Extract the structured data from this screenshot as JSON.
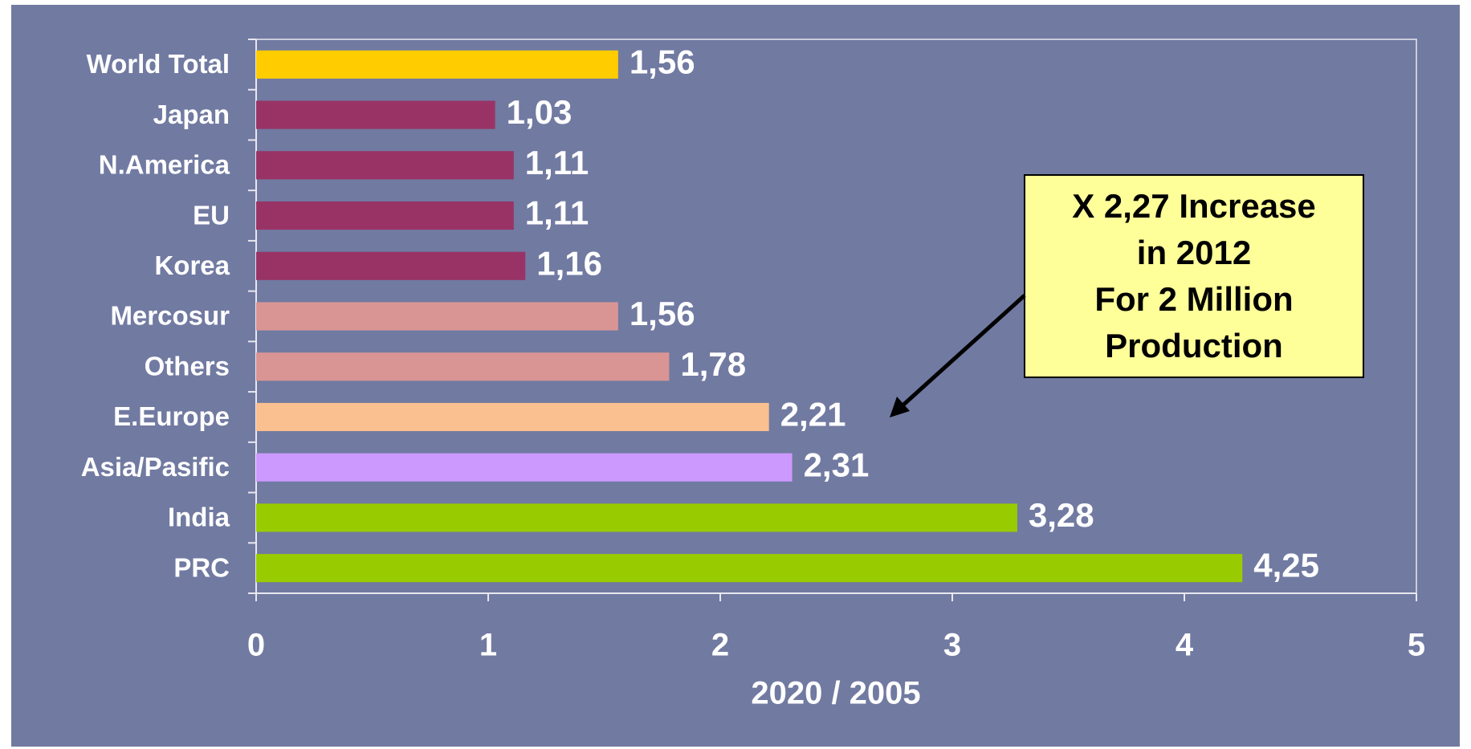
{
  "chart_data": {
    "type": "barh",
    "categories": [
      "World Total",
      "Japan",
      "N.America",
      "EU",
      "Korea",
      "Mercosur",
      "Others",
      "E.Europe",
      "Asia/Pasific",
      "India",
      "PRC"
    ],
    "values": [
      1.56,
      1.03,
      1.11,
      1.11,
      1.16,
      1.56,
      1.78,
      2.21,
      2.31,
      3.28,
      4.25
    ],
    "value_labels": [
      "1,56",
      "1,03",
      "1,11",
      "1,11",
      "1,16",
      "1,56",
      "1,78",
      "2,21",
      "2,31",
      "3,28",
      "4,25"
    ],
    "colors": [
      "#ffcc00",
      "#993366",
      "#993366",
      "#993366",
      "#993366",
      "#d99594",
      "#d99594",
      "#fac090",
      "#cc99ff",
      "#99cc00",
      "#99cc00"
    ],
    "xlabel": "2020 / 2005",
    "xlim": [
      0,
      5
    ],
    "xticks": [
      0,
      1,
      2,
      3,
      4,
      5
    ],
    "annotation": [
      "X 2,27 Increase",
      "in 2012",
      "For 2 Million",
      "Production"
    ]
  }
}
